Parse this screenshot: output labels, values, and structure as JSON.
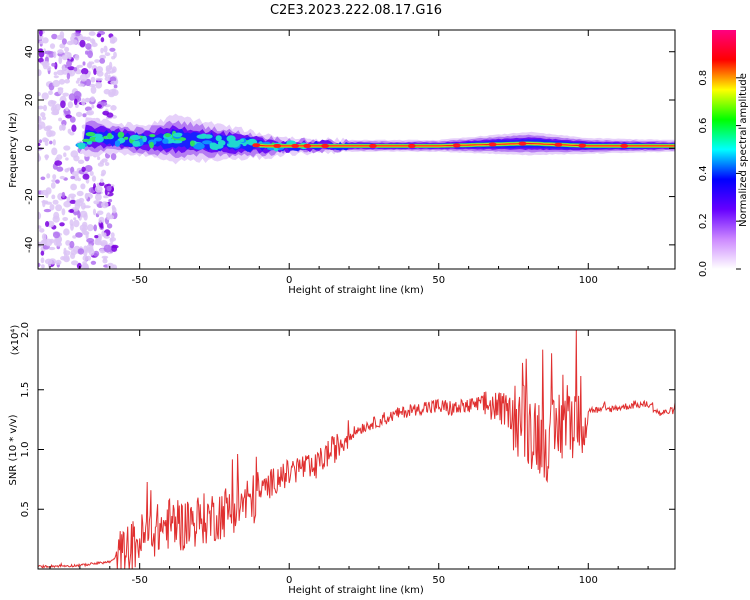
{
  "title": "C2E3.2023.222.08.17.G16",
  "chart_data": [
    {
      "type": "heatmap",
      "title": "C2E3.2023.222.08.17.G16",
      "xlabel": "Height of straight line (km)",
      "ylabel": "Frequency (Hz)",
      "xlim": [
        -84,
        129
      ],
      "ylim": [
        -50,
        49
      ],
      "x_ticks": [
        -50,
        0,
        50,
        100
      ],
      "y_ticks": [
        40,
        20,
        0,
        -20,
        -40
      ],
      "colorbar": {
        "label": "Normalized spectral amplitude",
        "range": [
          0,
          1
        ],
        "ticks": [
          "0.0",
          "0.2",
          "0.4",
          "0.6",
          "0.8"
        ],
        "colors": [
          "#ffffff",
          "#cc88ff",
          "#6600ff",
          "#0000ff",
          "#00ffff",
          "#00ff00",
          "#ffff00",
          "#ff0000",
          "#ff0080"
        ]
      },
      "signal_band": [
        {
          "x": -68,
          "center": 5,
          "halfwidth": 5
        },
        {
          "x": -58,
          "center": 4,
          "halfwidth": 4
        },
        {
          "x": -48,
          "center": 3,
          "halfwidth": 4
        },
        {
          "x": -38,
          "center": 4,
          "halfwidth": 6
        },
        {
          "x": -28,
          "center": 3,
          "halfwidth": 5
        },
        {
          "x": -18,
          "center": 2,
          "halfwidth": 4
        },
        {
          "x": -8,
          "center": 1,
          "halfwidth": 3
        },
        {
          "x": 2,
          "center": 1,
          "halfwidth": 2
        },
        {
          "x": 20,
          "center": 1,
          "halfwidth": 1.5
        },
        {
          "x": 50,
          "center": 1,
          "halfwidth": 1.5
        },
        {
          "x": 80,
          "center": 2,
          "halfwidth": 3
        },
        {
          "x": 100,
          "center": 1,
          "halfwidth": 2
        },
        {
          "x": 129,
          "center": 1,
          "halfwidth": 1.5
        }
      ]
    },
    {
      "type": "line",
      "xlabel": "Height of straight line (km)",
      "ylabel": "SNR (10 * v/v)",
      "y_multiplier": "(x10⁴)",
      "xlim": [
        -84,
        129
      ],
      "ylim": [
        0,
        2.0
      ],
      "x_ticks": [
        -50,
        0,
        50,
        100
      ],
      "y_ticks": [
        "0.5",
        "1.0",
        "1.5",
        "2.0"
      ],
      "color": "#e03030",
      "series": [
        {
          "x": [
            -84,
            -70,
            -60,
            -56,
            -52,
            -48,
            -44,
            -40,
            -36,
            -32,
            -28,
            -24,
            -20,
            -16,
            -12,
            -8,
            -4,
            0,
            4,
            8,
            12,
            16,
            20,
            24,
            28,
            32,
            36,
            40,
            45,
            50,
            55,
            60,
            65,
            70,
            75,
            80,
            85,
            88,
            90,
            93,
            97,
            100,
            105,
            110,
            115,
            120,
            124,
            129
          ],
          "y": [
            0.02,
            0.03,
            0.06,
            0.12,
            0.2,
            0.28,
            0.33,
            0.38,
            0.36,
            0.4,
            0.42,
            0.45,
            0.5,
            0.55,
            0.58,
            0.68,
            0.76,
            0.8,
            0.86,
            0.82,
            0.95,
            1.02,
            1.12,
            1.18,
            1.22,
            1.25,
            1.3,
            1.32,
            1.35,
            1.36,
            1.34,
            1.36,
            1.38,
            1.35,
            1.3,
            1.2,
            1.1,
            1.05,
            1.2,
            1.25,
            1.3,
            1.33,
            1.33,
            1.35,
            1.37,
            1.38,
            1.3,
            1.33
          ]
        }
      ]
    }
  ]
}
